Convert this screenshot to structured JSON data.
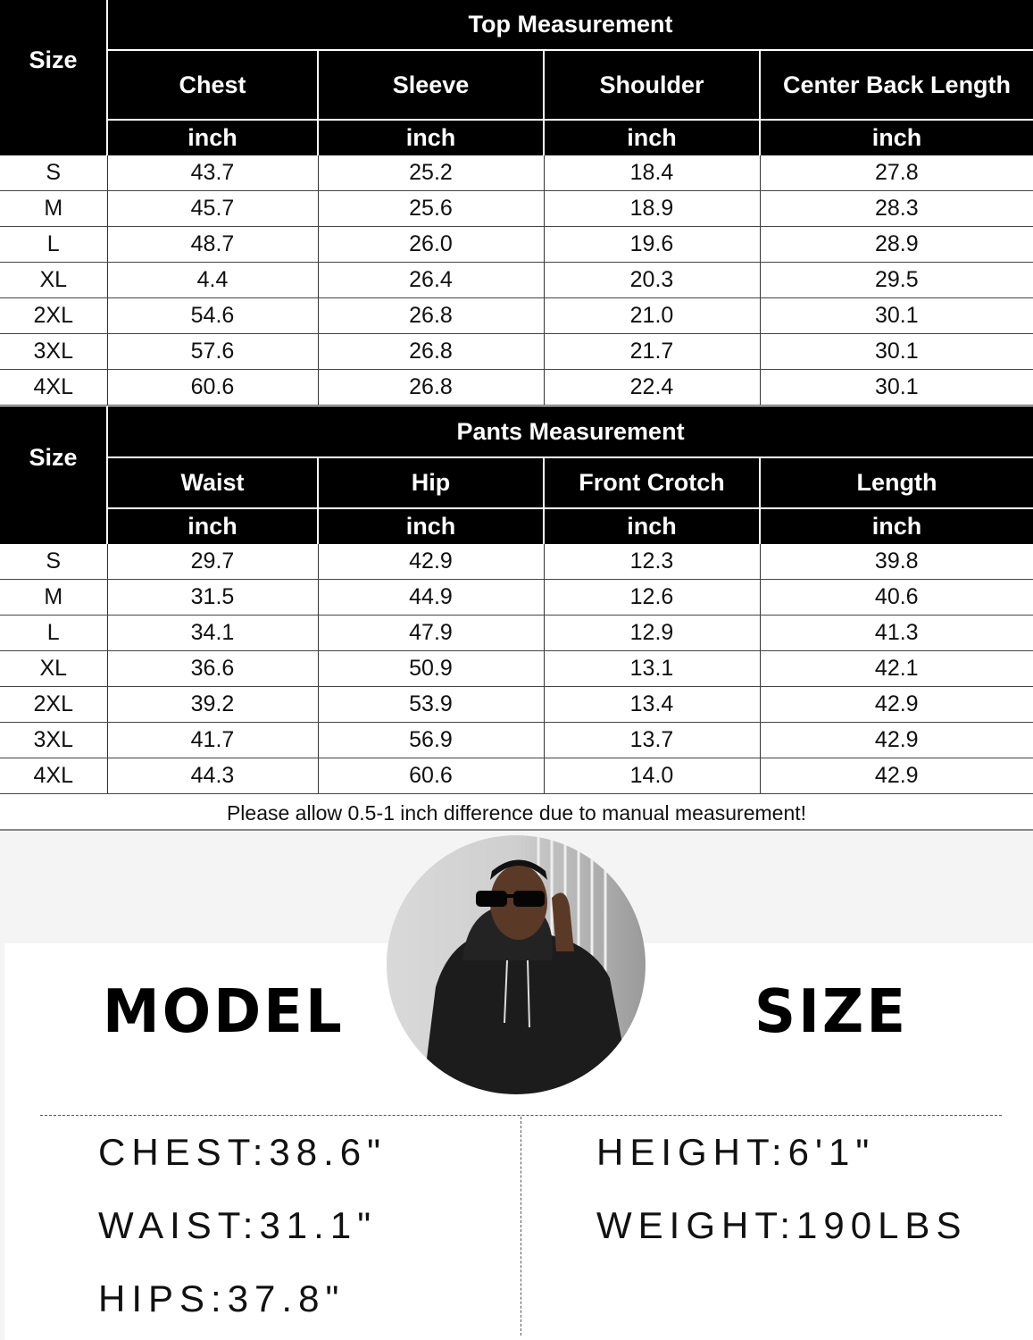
{
  "top_table": {
    "title": "Top Measurement",
    "size_label": "Size",
    "columns": [
      {
        "name": "Chest",
        "unit": "inch"
      },
      {
        "name": "Sleeve",
        "unit": "inch"
      },
      {
        "name": "Shoulder",
        "unit": "inch"
      },
      {
        "name": "Center Back Length",
        "unit": "inch"
      }
    ],
    "rows": [
      [
        "S",
        "43.7",
        "25.2",
        "18.4",
        "27.8"
      ],
      [
        "M",
        "45.7",
        "25.6",
        "18.9",
        "28.3"
      ],
      [
        "L",
        "48.7",
        "26.0",
        "19.6",
        "28.9"
      ],
      [
        "XL",
        "4.4",
        "26.4",
        "20.3",
        "29.5"
      ],
      [
        "2XL",
        "54.6",
        "26.8",
        "21.0",
        "30.1"
      ],
      [
        "3XL",
        "57.6",
        "26.8",
        "21.7",
        "30.1"
      ],
      [
        "4XL",
        "60.6",
        "26.8",
        "22.4",
        "30.1"
      ]
    ]
  },
  "pants_table": {
    "title": "Pants Measurement",
    "size_label": "Size",
    "columns": [
      {
        "name": "Waist",
        "unit": "inch"
      },
      {
        "name": "Hip",
        "unit": "inch"
      },
      {
        "name": "Front Crotch",
        "unit": "inch"
      },
      {
        "name": "Length",
        "unit": "inch"
      }
    ],
    "rows": [
      [
        "S",
        "29.7",
        "42.9",
        "12.3",
        "39.8"
      ],
      [
        "M",
        "31.5",
        "44.9",
        "12.6",
        "40.6"
      ],
      [
        "L",
        "34.1",
        "47.9",
        "12.9",
        "41.3"
      ],
      [
        "XL",
        "36.6",
        "50.9",
        "13.1",
        "42.1"
      ],
      [
        "2XL",
        "39.2",
        "53.9",
        "13.4",
        "42.9"
      ],
      [
        "3XL",
        "41.7",
        "56.9",
        "13.7",
        "42.9"
      ],
      [
        "4XL",
        "44.3",
        "60.6",
        "14.0",
        "42.9"
      ]
    ]
  },
  "note": "Please allow 0.5-1 inch difference due to manual measurement!",
  "model": {
    "word_left": "MODEL",
    "word_right": "SIZE",
    "stats_left": [
      "CHEST:38.6\"",
      "WAIST:31.1\"",
      "HIPS:37.8\""
    ],
    "stats_right": [
      "HEIGHT:6'1\"",
      "WEIGHT:190LBS"
    ]
  }
}
